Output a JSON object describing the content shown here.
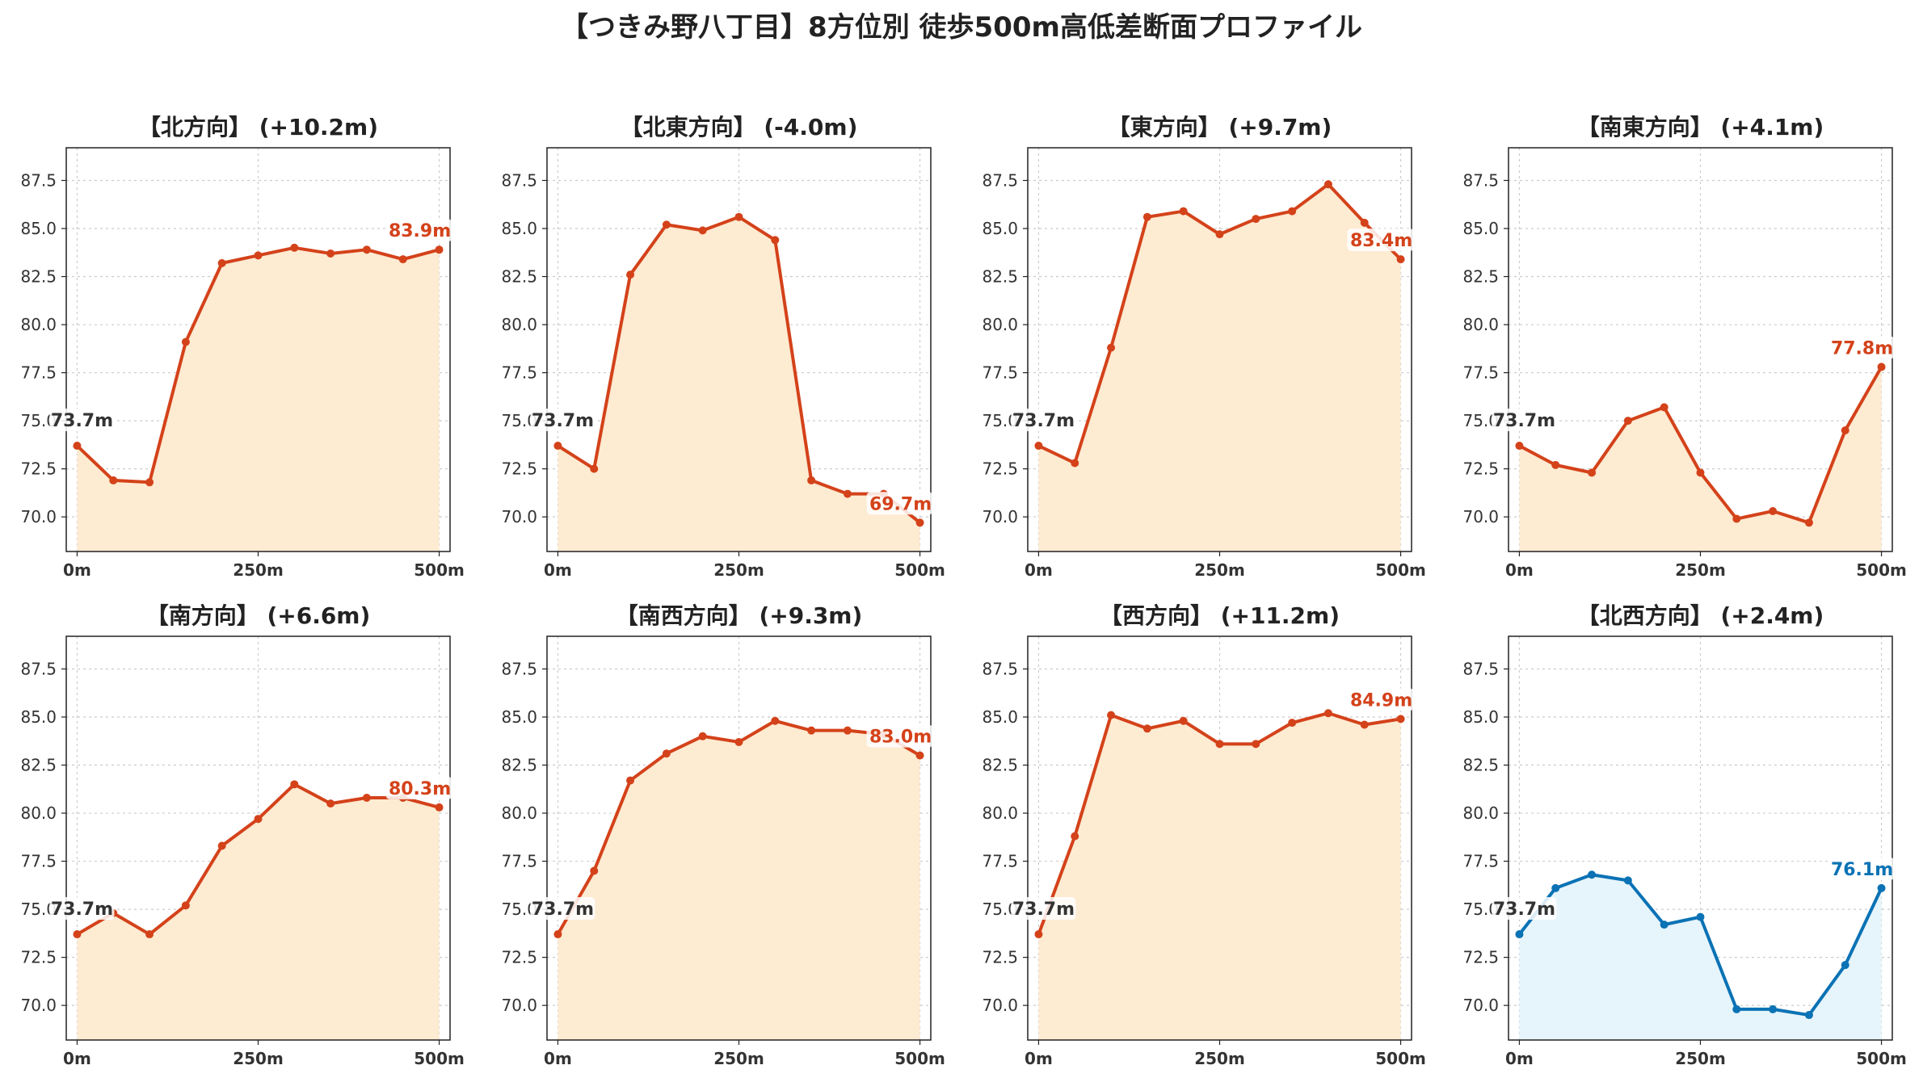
{
  "title": "【つきみ野八丁目】8方位別 徒歩500m高低差断面プロファイル",
  "chart_data": [
    {
      "type": "area",
      "title": "【北方向】 (+10.2m)",
      "x": [
        0,
        50,
        100,
        150,
        200,
        250,
        300,
        350,
        400,
        450,
        500
      ],
      "values": [
        73.7,
        71.9,
        71.8,
        79.1,
        83.2,
        83.6,
        84.0,
        83.7,
        83.9,
        83.4,
        83.9
      ],
      "start_label": "73.7m",
      "end_label": "83.9m",
      "color": "#d4421a",
      "fill": "#fdebd2"
    },
    {
      "type": "area",
      "title": "【北東方向】 (-4.0m)",
      "x": [
        0,
        50,
        100,
        150,
        200,
        250,
        300,
        350,
        400,
        450,
        500
      ],
      "values": [
        73.7,
        72.5,
        82.6,
        85.2,
        84.9,
        85.6,
        84.4,
        71.9,
        71.2,
        71.2,
        69.7
      ],
      "start_label": "73.7m",
      "end_label": "69.7m",
      "color": "#d4421a",
      "fill": "#fdebd2"
    },
    {
      "type": "area",
      "title": "【東方向】 (+9.7m)",
      "x": [
        0,
        50,
        100,
        150,
        200,
        250,
        300,
        350,
        400,
        450,
        500
      ],
      "values": [
        73.7,
        72.8,
        78.8,
        85.6,
        85.9,
        84.7,
        85.5,
        85.9,
        87.3,
        85.3,
        83.4
      ],
      "start_label": "73.7m",
      "end_label": "83.4m",
      "color": "#d4421a",
      "fill": "#fdebd2"
    },
    {
      "type": "area",
      "title": "【南東方向】 (+4.1m)",
      "x": [
        0,
        50,
        100,
        150,
        200,
        250,
        300,
        350,
        400,
        450,
        500
      ],
      "values": [
        73.7,
        72.7,
        72.3,
        75.0,
        75.7,
        72.3,
        69.9,
        70.3,
        69.7,
        74.5,
        77.8
      ],
      "start_label": "73.7m",
      "end_label": "77.8m",
      "color": "#d4421a",
      "fill": "#fdebd2"
    },
    {
      "type": "area",
      "title": "【南方向】 (+6.6m)",
      "x": [
        0,
        50,
        100,
        150,
        200,
        250,
        300,
        350,
        400,
        450,
        500
      ],
      "values": [
        73.7,
        74.8,
        73.7,
        75.2,
        78.3,
        79.7,
        81.5,
        80.5,
        80.8,
        80.8,
        80.3
      ],
      "start_label": "73.7m",
      "end_label": "80.3m",
      "color": "#d4421a",
      "fill": "#fdebd2"
    },
    {
      "type": "area",
      "title": "【南西方向】 (+9.3m)",
      "x": [
        0,
        50,
        100,
        150,
        200,
        250,
        300,
        350,
        400,
        450,
        500
      ],
      "values": [
        73.7,
        77.0,
        81.7,
        83.1,
        84.0,
        83.7,
        84.8,
        84.3,
        84.3,
        84.1,
        83.0
      ],
      "start_label": "73.7m",
      "end_label": "83.0m",
      "color": "#d4421a",
      "fill": "#fdebd2"
    },
    {
      "type": "area",
      "title": "【西方向】 (+11.2m)",
      "x": [
        0,
        50,
        100,
        150,
        200,
        250,
        300,
        350,
        400,
        450,
        500
      ],
      "values": [
        73.7,
        78.8,
        85.1,
        84.4,
        84.8,
        83.6,
        83.6,
        84.7,
        85.2,
        84.6,
        84.9
      ],
      "start_label": "73.7m",
      "end_label": "84.9m",
      "color": "#d4421a",
      "fill": "#fdebd2"
    },
    {
      "type": "area",
      "title": "【北西方向】 (+2.4m)",
      "x": [
        0,
        50,
        100,
        150,
        200,
        250,
        300,
        350,
        400,
        450,
        500
      ],
      "values": [
        73.7,
        76.1,
        76.8,
        76.5,
        74.2,
        74.6,
        69.8,
        69.8,
        69.5,
        72.1,
        76.1
      ],
      "start_label": "73.7m",
      "end_label": "76.1m",
      "color": "#0a72b5",
      "fill": "#e6f4fb"
    }
  ],
  "axes": {
    "ylim": [
      68.2,
      89.2
    ],
    "xlim": [
      -15,
      515
    ],
    "yticks": [
      "70.0",
      "72.5",
      "75.0",
      "77.5",
      "80.0",
      "82.5",
      "85.0",
      "87.5"
    ],
    "xticks": [
      "0m",
      "250m",
      "500m"
    ],
    "grid": true
  }
}
